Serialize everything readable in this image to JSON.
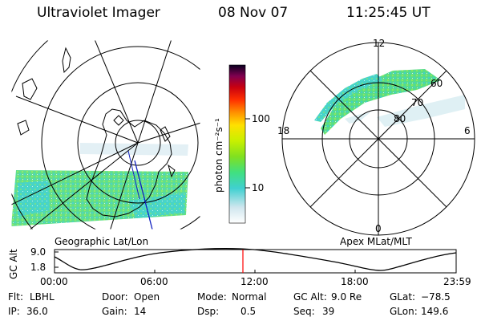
{
  "header": {
    "title": "Ultraviolet Imager",
    "date": "08 Nov 07",
    "time": "11:25:45 UT"
  },
  "geo_panel": {
    "label": "Geographic Lat/Lon"
  },
  "colorbar": {
    "unit_label": "photon cm⁻²s⁻¹",
    "tick_100": "100",
    "tick_10": "10",
    "scale": "log",
    "colors": [
      "#ffffff",
      "#d0e8f0",
      "#40d0d0",
      "#40e080",
      "#80e020",
      "#c0f000",
      "#ffe000",
      "#ff9000",
      "#ff3000",
      "#d00000",
      "#900040",
      "#300050",
      "#000020"
    ]
  },
  "apex_panel": {
    "label": "Apex MLat/MLT",
    "mlt_top": "12",
    "mlt_left": "18",
    "mlt_right": "6",
    "mlt_bottom": "0",
    "lat_60": "60",
    "lat_70": "70",
    "lat_80": "80"
  },
  "altitude_plot": {
    "ylabel": "GC Alt",
    "ytick_top": "9.0",
    "ytick_bottom": "1.8",
    "xticks": [
      "00:00",
      "06:00",
      "12:00",
      "18:00",
      "23:59"
    ],
    "marker_color": "#ff0000"
  },
  "info": {
    "flt_label": "Flt:",
    "flt_value": "LBHL",
    "ip_label": "IP:",
    "ip_value": "36.0",
    "door_label": "Door:",
    "door_value": "Open",
    "gain_label": "Gain:",
    "gain_value": "14",
    "mode_label": "Mode:",
    "mode_value": "Normal",
    "dsp_label": "Dsp:",
    "dsp_value": "0.5",
    "gcalt_label": "GC Alt:",
    "gcalt_value": "9.0 Re",
    "seq_label": "Seq:",
    "seq_value": "39",
    "glat_label": "GLat:",
    "glat_value": "−78.5",
    "glon_label": "GLon:",
    "glon_value": "149.6"
  }
}
